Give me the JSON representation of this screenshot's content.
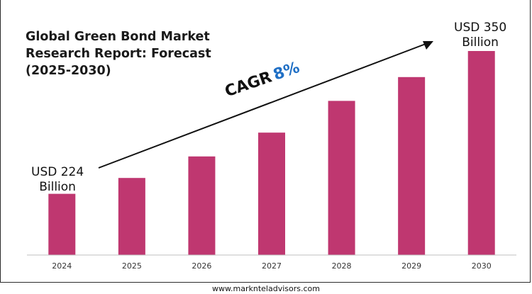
{
  "title_lines": [
    "Global Green Bond Market",
    "Research Report: Forecast",
    "(2025-2030)"
  ],
  "start_callout": {
    "line1": "USD 224",
    "line2": "Billion"
  },
  "end_callout": {
    "line1": "USD 350",
    "line2": "Billion"
  },
  "cagr": {
    "label": "CAGR",
    "value": "8%"
  },
  "footer": "www.marknteladvisors.com",
  "colors": {
    "bar": "#bf3770",
    "axis": "#bfbfbf",
    "arrow": "#111111",
    "cagr_value": "#1f6fc5"
  },
  "chart_data": {
    "type": "bar",
    "categories": [
      "2024",
      "2025",
      "2026",
      "2027",
      "2028",
      "2029",
      "2030"
    ],
    "values": [
      224,
      238,
      257,
      278,
      306,
      327,
      350
    ],
    "title": "Global Green Bond Market Research Report: Forecast (2025-2030)",
    "xlabel": "",
    "ylabel": "",
    "ylim": [
      170,
      370
    ],
    "grid": false,
    "legend": "none",
    "annotations": [
      "USD 224 Billion",
      "USD 350 Billion",
      "CAGR 8%"
    ]
  }
}
